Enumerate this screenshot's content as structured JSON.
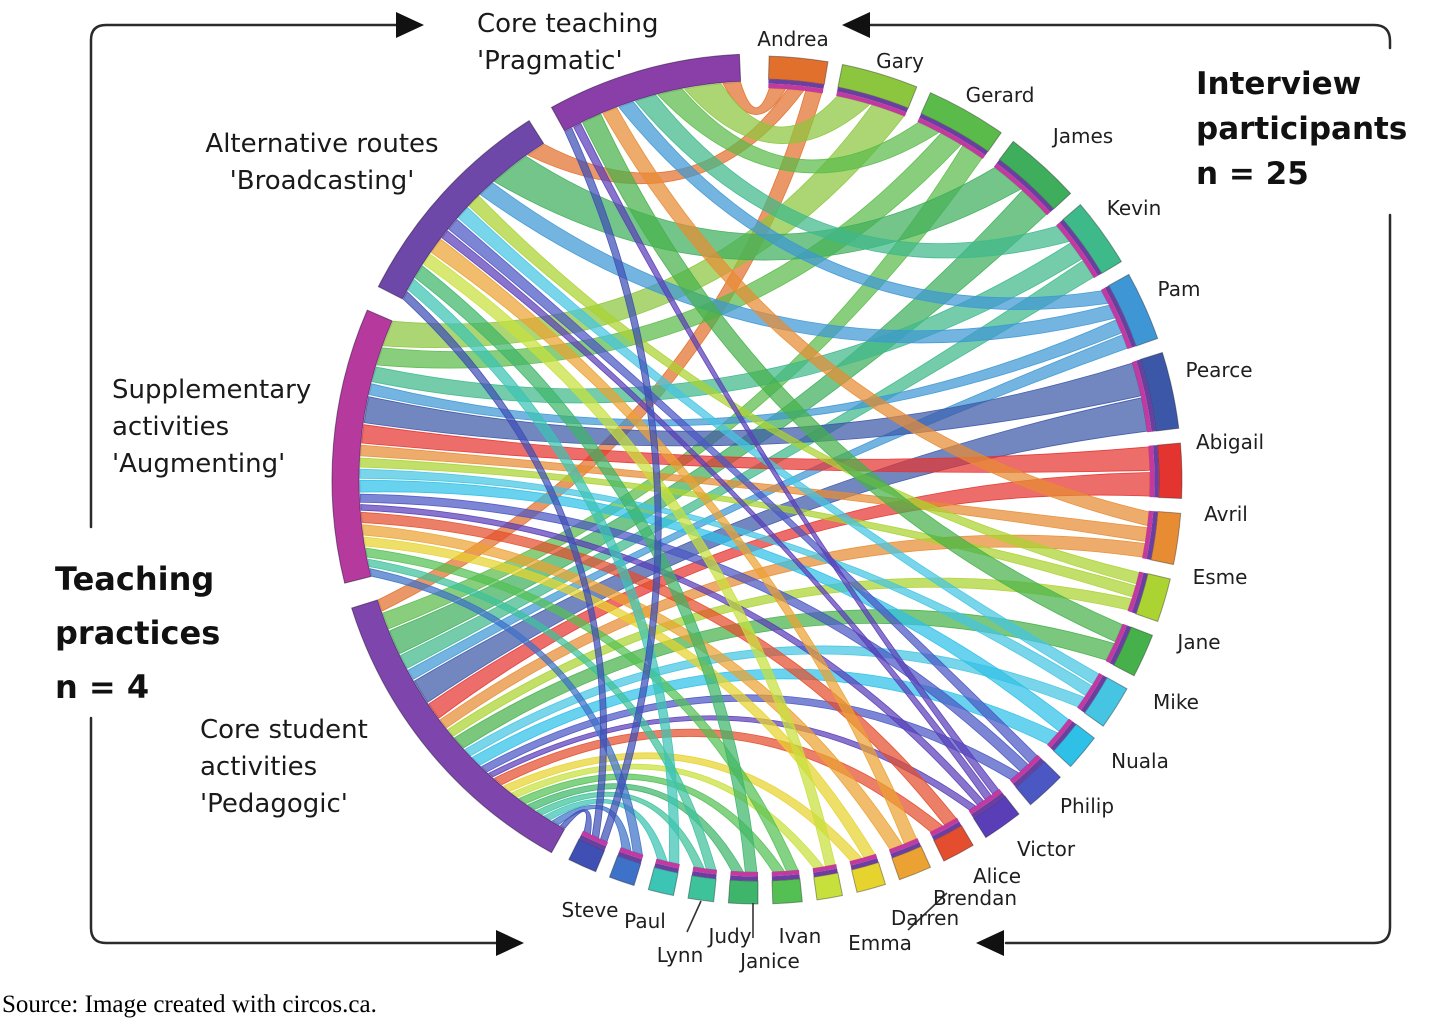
{
  "figure": {
    "left_header": {
      "lines": [
        "Teaching",
        "practices",
        "n = 4"
      ]
    },
    "right_header": {
      "lines": [
        "Interview",
        "participants",
        "n = 25"
      ]
    },
    "source_note": "Source: Image created with circos.ca.",
    "colors": {
      "bracket": "#2b2b2b",
      "arrow": "#111111",
      "stripe_purple": "#6a3fa0",
      "stripe_magenta": "#c2399f",
      "label_text": "#1f1f1f"
    }
  },
  "chart_data": {
    "type": "chord",
    "description": "Circos chord diagram linking 4 teaching practices (left arcs) to 25 interview participants (right arcs). Ribbons are coloured by participant.",
    "practices": [
      {
        "id": "pragmatic",
        "name": "Core teaching 'Pragmatic'",
        "label_lines": [
          "Core teaching",
          "'Pragmatic'"
        ],
        "color": "#8a3fa8",
        "start": 331,
        "end": 357.5
      },
      {
        "id": "broadcasting",
        "name": "Alternative routes 'Broadcasting'",
        "label_lines": [
          "Alternative routes",
          "'Broadcasting'"
        ],
        "color": "#6d48a8",
        "start": 297,
        "end": 327.5
      },
      {
        "id": "augmenting",
        "name": "Supplementary activities 'Augmenting'",
        "label_lines": [
          "Supplementary",
          "activities",
          "'Augmenting'"
        ],
        "color": "#b6399e",
        "start": 256,
        "end": 293.5
      },
      {
        "id": "pedagogic",
        "name": "Core student activities 'Pedagogic'",
        "label_lines": [
          "Core student",
          "activities",
          "'Pedagogic'"
        ],
        "color": "#7e46ad",
        "start": 209,
        "end": 252.5
      }
    ],
    "participants": [
      {
        "name": "Andrea",
        "color": "#e2702d",
        "start": 1.5,
        "end": 9.5,
        "label": [
          793,
          40
        ]
      },
      {
        "name": "Gary",
        "color": "#8cc63e",
        "start": 11.5,
        "end": 22,
        "label": [
          900,
          62
        ]
      },
      {
        "name": "Gerard",
        "color": "#5bbb4a",
        "start": 24,
        "end": 35,
        "label": [
          1000,
          96
        ]
      },
      {
        "name": "James",
        "color": "#3fae5c",
        "start": 37,
        "end": 47.5,
        "label": [
          1083,
          137
        ]
      },
      {
        "name": "Kevin",
        "color": "#3eb98a",
        "start": 49.5,
        "end": 59,
        "label": [
          1134,
          209
        ]
      },
      {
        "name": "Pam",
        "color": "#3e97d4",
        "start": 61,
        "end": 70.5,
        "label": [
          1179,
          290
        ]
      },
      {
        "name": "Pearce",
        "color": "#3c57a8",
        "start": 72.5,
        "end": 83,
        "label": [
          1219,
          371
        ]
      },
      {
        "name": "Abigail",
        "color": "#e43430",
        "start": 85,
        "end": 92.5,
        "label": [
          1230,
          443
        ]
      },
      {
        "name": "Avril",
        "color": "#e78c33",
        "start": 94.5,
        "end": 101.5,
        "label": [
          1226,
          515
        ]
      },
      {
        "name": "Esme",
        "color": "#abd331",
        "start": 103.5,
        "end": 109.5,
        "label": [
          1220,
          578
        ]
      },
      {
        "name": "Jane",
        "color": "#46b14b",
        "start": 111.5,
        "end": 117.5,
        "label": [
          1199,
          643
        ]
      },
      {
        "name": "Mike",
        "color": "#45c5e2",
        "start": 119.5,
        "end": 125.5,
        "label": [
          1176,
          703
        ]
      },
      {
        "name": "Nuala",
        "color": "#2fc0e8",
        "start": 127.5,
        "end": 132.5,
        "label": [
          1140,
          762
        ]
      },
      {
        "name": "Philip",
        "color": "#4b57c3",
        "start": 134.5,
        "end": 140,
        "label": [
          1087,
          807
        ]
      },
      {
        "name": "Victor",
        "color": "#5a3eb8",
        "start": 142,
        "end": 147.5,
        "label": [
          1046,
          850
        ]
      },
      {
        "name": "Alice",
        "color": "#e44d2d",
        "start": 149.5,
        "end": 154,
        "label": [
          997,
          877
        ]
      },
      {
        "name": "Brendan",
        "color": "#eba232",
        "start": 156,
        "end": 160.5,
        "label": [
          975,
          899
        ]
      },
      {
        "name": "Darren",
        "color": "#e7d32e",
        "start": 162.5,
        "end": 166.5,
        "label": [
          925,
          919
        ]
      },
      {
        "name": "Emma",
        "color": "#c8e03c",
        "start": 168.5,
        "end": 172,
        "label": [
          880,
          944
        ],
        "leader": [
          [
            947,
            893
          ],
          [
            908,
            930
          ]
        ]
      },
      {
        "name": "Ivan",
        "color": "#54c053",
        "start": 174,
        "end": 178,
        "label": [
          800,
          937
        ]
      },
      {
        "name": "Janice",
        "color": "#3eb56a",
        "start": 180,
        "end": 184,
        "label": [
          770,
          962
        ],
        "leader": [
          [
            753,
            903
          ],
          [
            753,
            938
          ]
        ]
      },
      {
        "name": "Judy",
        "color": "#3ec29a",
        "start": 186,
        "end": 189.5,
        "label": [
          730,
          937
        ]
      },
      {
        "name": "Lynn",
        "color": "#3cc4b4",
        "start": 191.5,
        "end": 195,
        "label": [
          680,
          956
        ],
        "leader": [
          [
            701,
            901
          ],
          [
            687,
            932
          ]
        ]
      },
      {
        "name": "Paul",
        "color": "#3e72c8",
        "start": 197,
        "end": 200.5,
        "label": [
          645,
          922
        ]
      },
      {
        "name": "Steve",
        "color": "#3f4fb4",
        "start": 202.5,
        "end": 206.5,
        "label": [
          590,
          911
        ]
      }
    ],
    "links": [
      [
        "Andrea",
        "pragmatic"
      ],
      [
        "Andrea",
        "broadcasting"
      ],
      [
        "Andrea",
        "pedagogic"
      ],
      [
        "Gary",
        "pragmatic"
      ],
      [
        "Gary",
        "augmenting"
      ],
      [
        "Gerard",
        "pragmatic"
      ],
      [
        "Gerard",
        "augmenting"
      ],
      [
        "Gerard",
        "pedagogic"
      ],
      [
        "James",
        "broadcasting"
      ],
      [
        "James",
        "pedagogic"
      ],
      [
        "Kevin",
        "pragmatic"
      ],
      [
        "Kevin",
        "augmenting"
      ],
      [
        "Kevin",
        "pedagogic"
      ],
      [
        "Pam",
        "pragmatic"
      ],
      [
        "Pam",
        "broadcasting"
      ],
      [
        "Pam",
        "augmenting"
      ],
      [
        "Pam",
        "pedagogic"
      ],
      [
        "Pearce",
        "augmenting"
      ],
      [
        "Pearce",
        "pedagogic"
      ],
      [
        "Abigail",
        "augmenting"
      ],
      [
        "Abigail",
        "pedagogic"
      ],
      [
        "Avril",
        "pragmatic"
      ],
      [
        "Avril",
        "augmenting"
      ],
      [
        "Avril",
        "pedagogic"
      ],
      [
        "Esme",
        "broadcasting"
      ],
      [
        "Esme",
        "augmenting"
      ],
      [
        "Esme",
        "pedagogic"
      ],
      [
        "Jane",
        "pragmatic"
      ],
      [
        "Jane",
        "pedagogic"
      ],
      [
        "Mike",
        "broadcasting"
      ],
      [
        "Mike",
        "augmenting"
      ],
      [
        "Mike",
        "pedagogic"
      ],
      [
        "Nuala",
        "augmenting"
      ],
      [
        "Nuala",
        "pedagogic"
      ],
      [
        "Philip",
        "broadcasting"
      ],
      [
        "Philip",
        "augmenting"
      ],
      [
        "Philip",
        "pedagogic"
      ],
      [
        "Victor",
        "pragmatic"
      ],
      [
        "Victor",
        "broadcasting"
      ],
      [
        "Victor",
        "augmenting"
      ],
      [
        "Victor",
        "pedagogic"
      ],
      [
        "Alice",
        "augmenting"
      ],
      [
        "Alice",
        "pedagogic"
      ],
      [
        "Brendan",
        "broadcasting"
      ],
      [
        "Brendan",
        "augmenting"
      ],
      [
        "Darren",
        "augmenting"
      ],
      [
        "Darren",
        "pedagogic"
      ],
      [
        "Emma",
        "broadcasting"
      ],
      [
        "Emma",
        "pedagogic"
      ],
      [
        "Ivan",
        "augmenting"
      ],
      [
        "Ivan",
        "pedagogic"
      ],
      [
        "Janice",
        "broadcasting"
      ],
      [
        "Janice",
        "pedagogic"
      ],
      [
        "Judy",
        "augmenting"
      ],
      [
        "Judy",
        "pedagogic"
      ],
      [
        "Lynn",
        "broadcasting"
      ],
      [
        "Lynn",
        "pedagogic"
      ],
      [
        "Paul",
        "augmenting"
      ],
      [
        "Paul",
        "pedagogic"
      ],
      [
        "Steve",
        "pragmatic"
      ],
      [
        "Steve",
        "broadcasting"
      ],
      [
        "Steve",
        "pedagogic"
      ]
    ],
    "layout": {
      "center": [
        758,
        480
      ],
      "outer_radius": 424,
      "legend": "none",
      "grid": false
    }
  }
}
